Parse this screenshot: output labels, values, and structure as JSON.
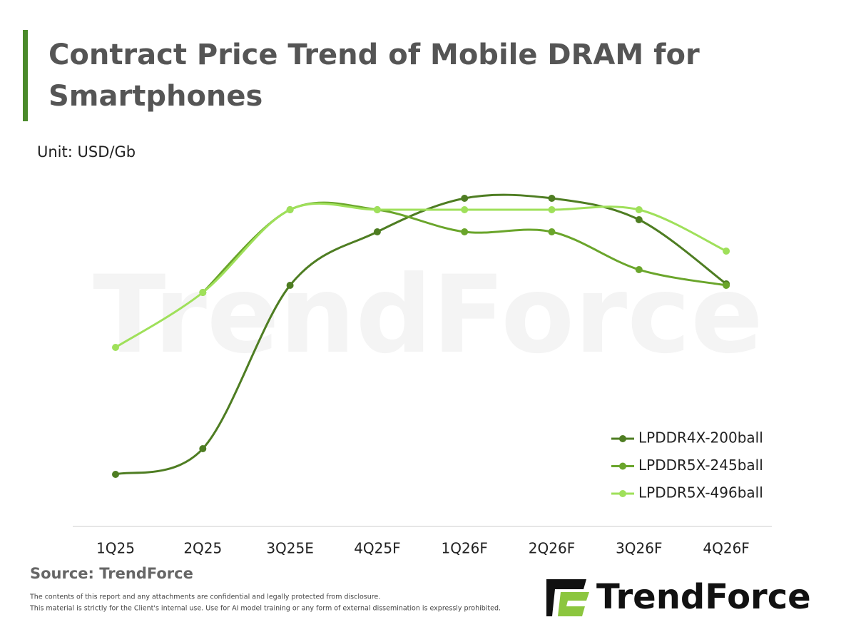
{
  "chart_data": {
    "type": "line",
    "title": "Contract Price Trend of Mobile DRAM for Smartphones",
    "unit_label": "Unit: USD/Gb",
    "source": "Source: TrendForce",
    "disclaimer": [
      "The contents of this report and any attachments are confidential and legally protected from disclosure.",
      "This material is strictly for the Client's internal use. Use for AI model training or any form of external dissemination is expressly prohibited."
    ],
    "brand": "TrendForce",
    "categories": [
      "1Q25",
      "2Q25",
      "3Q25E",
      "4Q25F",
      "1Q26F",
      "2Q26F",
      "3Q26F",
      "4Q26F"
    ],
    "series": [
      {
        "name": "LPDDR4X-200ball",
        "color": "#4e7d22",
        "values": [
          73,
          109,
          338,
          413,
          460,
          460,
          430,
          340
        ]
      },
      {
        "name": "LPDDR5X-245ball",
        "color": "#6aa52b",
        "values": [
          null,
          328,
          444,
          444,
          413,
          413,
          360,
          338
        ]
      },
      {
        "name": "LPDDR5X-496ball",
        "color": "#9fe05a",
        "values": [
          251,
          328,
          444,
          444,
          444,
          444,
          444,
          386
        ]
      }
    ],
    "ylim": [
      0,
      500
    ],
    "legend": "lower-right"
  }
}
